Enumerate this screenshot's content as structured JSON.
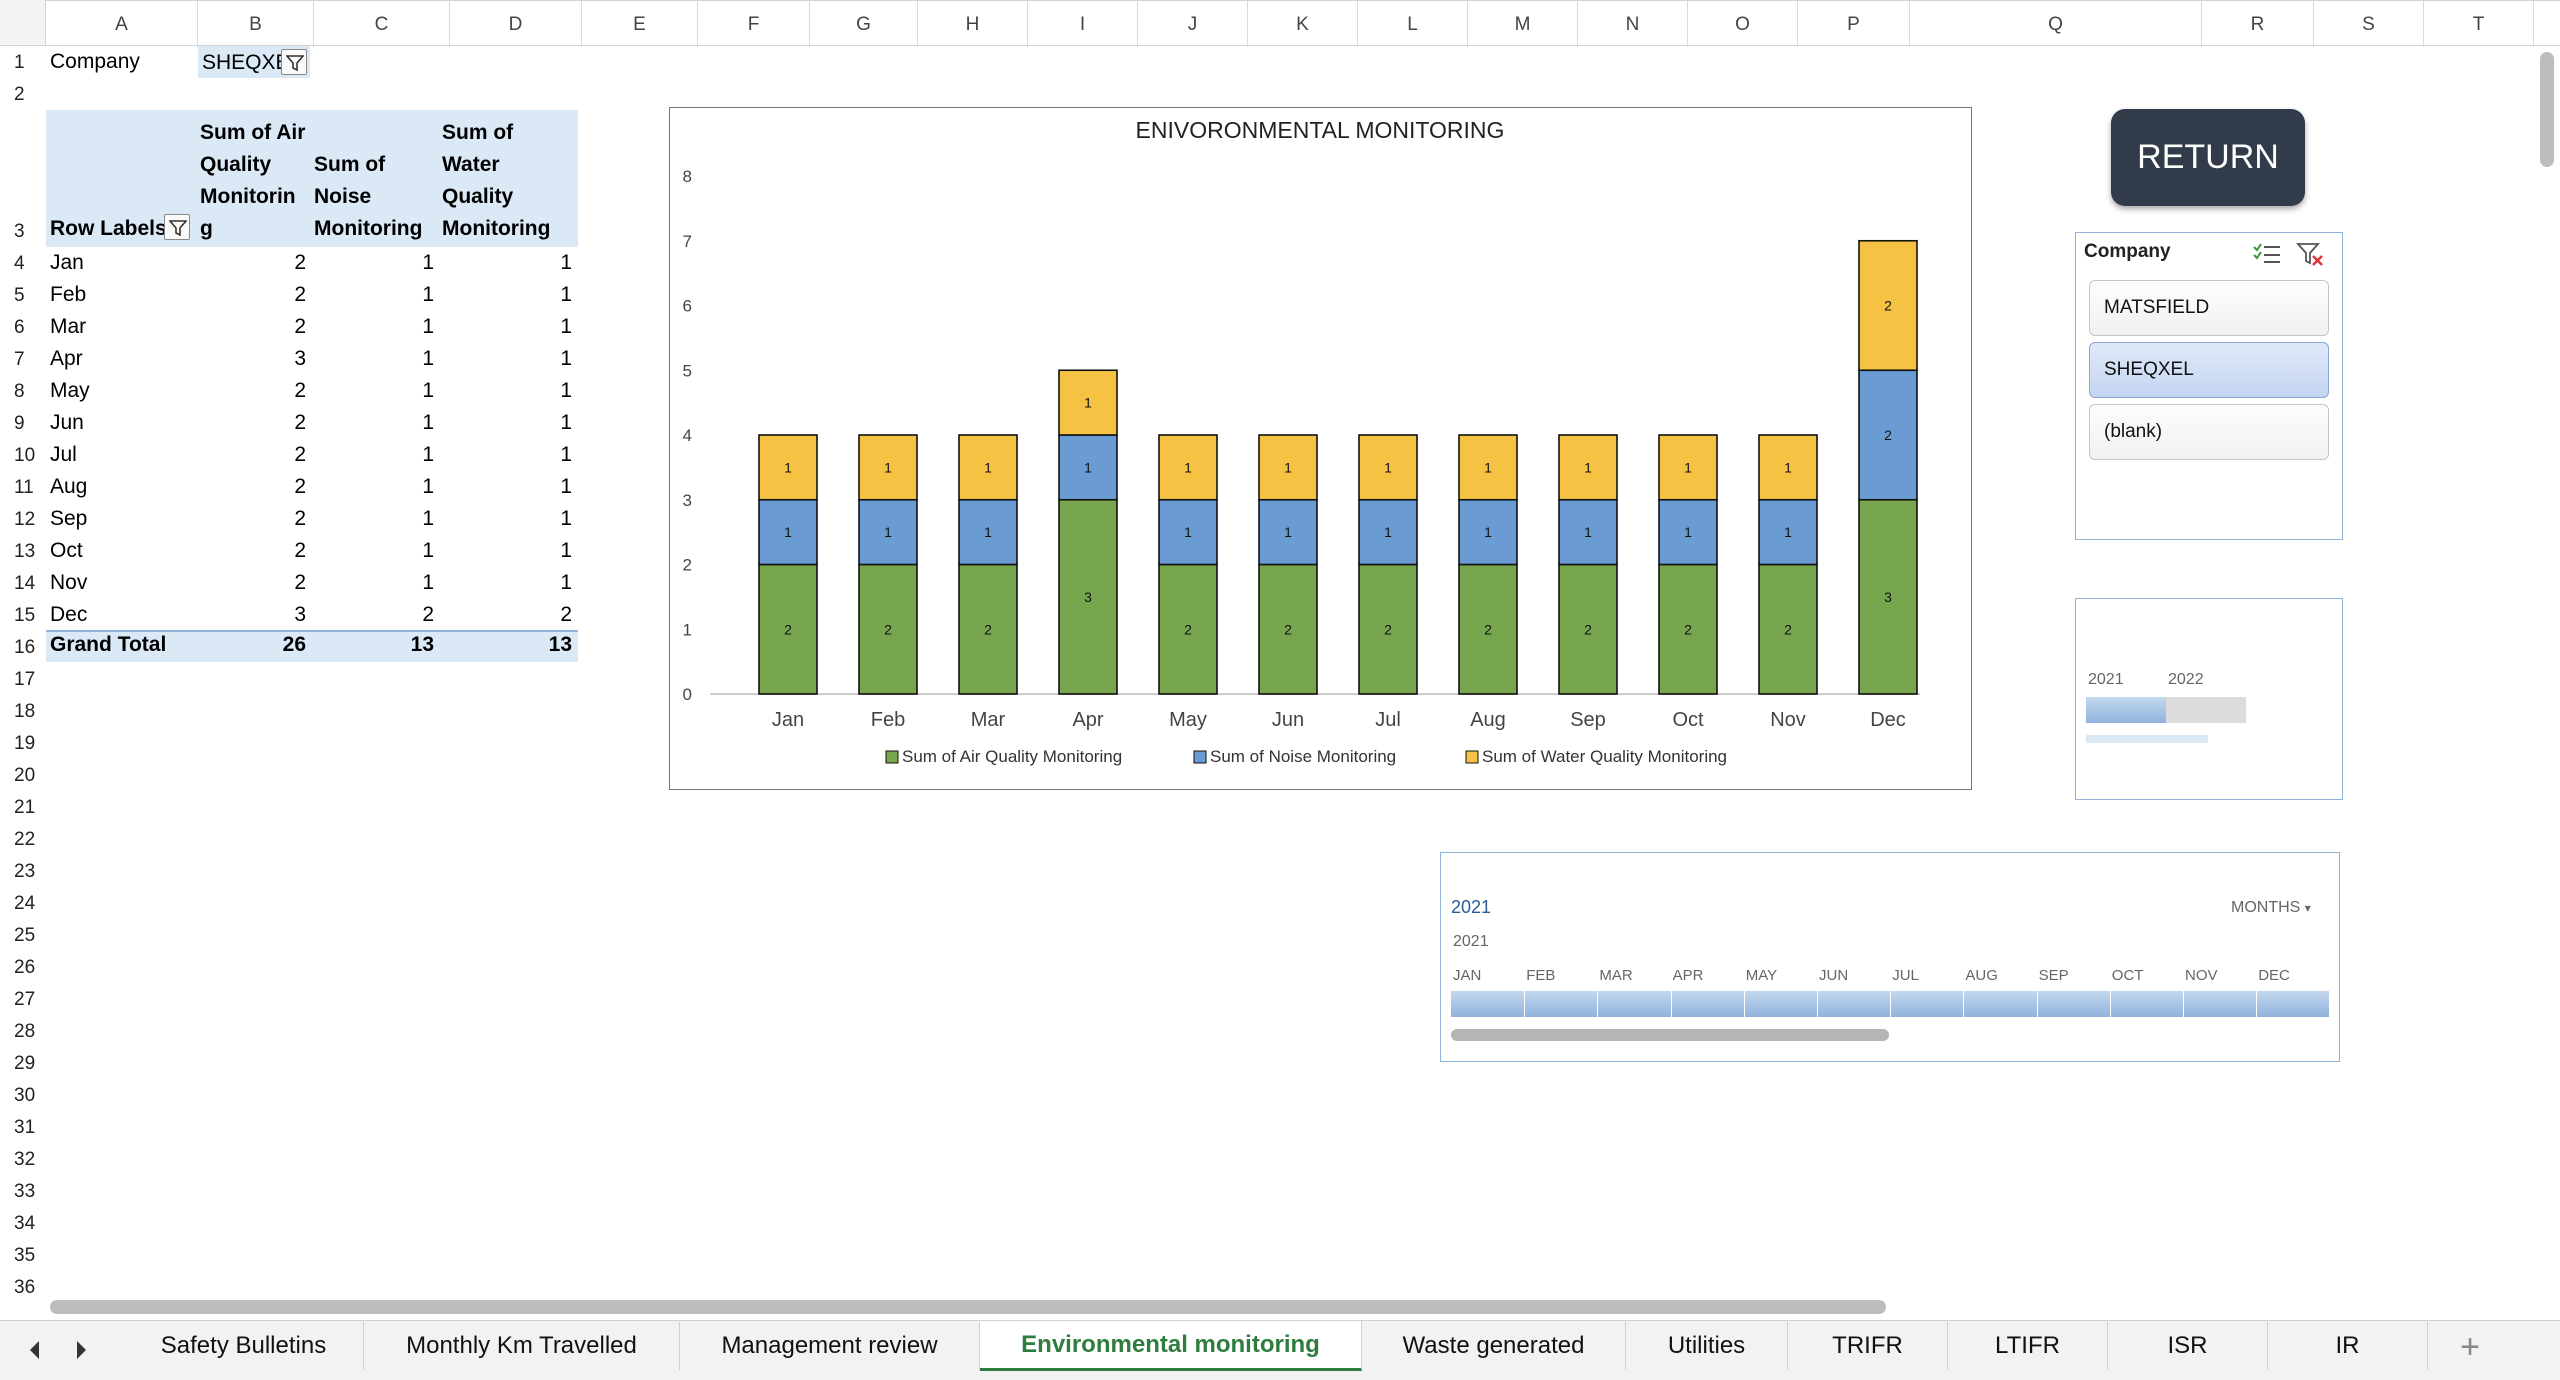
{
  "columns": [
    "A",
    "B",
    "C",
    "D",
    "E",
    "F",
    "G",
    "H",
    "I",
    "J",
    "K",
    "L",
    "M",
    "N",
    "O",
    "P",
    "Q",
    "R",
    "S",
    "T"
  ],
  "rows": [
    "1",
    "2",
    "3",
    "4",
    "5",
    "6",
    "7",
    "8",
    "9",
    "10",
    "11",
    "12",
    "13",
    "14",
    "15",
    "16",
    "17",
    "18",
    "19",
    "20",
    "21",
    "22",
    "23",
    "24",
    "25",
    "26",
    "27",
    "28",
    "29",
    "30",
    "31",
    "32",
    "33",
    "34",
    "35",
    "36"
  ],
  "filter": {
    "label": "Company",
    "value": "SHEQXE"
  },
  "pivot": {
    "row_labels": "Row Labels",
    "header_b": "Sum of Air Quality Monitorin g",
    "header_c": "Sum of Noise Monitoring",
    "header_d": "Sum of Water Quality Monitoring",
    "rows": [
      {
        "label": "Jan",
        "air": "2",
        "noise": "1",
        "water": "1"
      },
      {
        "label": "Feb",
        "air": "2",
        "noise": "1",
        "water": "1"
      },
      {
        "label": "Mar",
        "air": "2",
        "noise": "1",
        "water": "1"
      },
      {
        "label": "Apr",
        "air": "3",
        "noise": "1",
        "water": "1"
      },
      {
        "label": "May",
        "air": "2",
        "noise": "1",
        "water": "1"
      },
      {
        "label": "Jun",
        "air": "2",
        "noise": "1",
        "water": "1"
      },
      {
        "label": "Jul",
        "air": "2",
        "noise": "1",
        "water": "1"
      },
      {
        "label": "Aug",
        "air": "2",
        "noise": "1",
        "water": "1"
      },
      {
        "label": "Sep",
        "air": "2",
        "noise": "1",
        "water": "1"
      },
      {
        "label": "Oct",
        "air": "2",
        "noise": "1",
        "water": "1"
      },
      {
        "label": "Nov",
        "air": "2",
        "noise": "1",
        "water": "1"
      },
      {
        "label": "Dec",
        "air": "3",
        "noise": "2",
        "water": "2"
      }
    ],
    "grand_total": {
      "label": "Grand Total",
      "air": "26",
      "noise": "13",
      "water": "13"
    }
  },
  "chart_data": {
    "type": "bar",
    "stacked": true,
    "title": "ENIVORONMENTAL MONITORING",
    "categories": [
      "Jan",
      "Feb",
      "Mar",
      "Apr",
      "May",
      "Jun",
      "Jul",
      "Aug",
      "Sep",
      "Oct",
      "Nov",
      "Dec"
    ],
    "ylim": [
      0,
      8
    ],
    "yticks": [
      0,
      1,
      2,
      3,
      4,
      5,
      6,
      7,
      8
    ],
    "grid": false,
    "legend": "bottom",
    "series": [
      {
        "name": "Sum of Air Quality Monitoring",
        "color": "#77a64f",
        "values": [
          2,
          2,
          2,
          3,
          2,
          2,
          2,
          2,
          2,
          2,
          2,
          3
        ]
      },
      {
        "name": "Sum of Noise Monitoring",
        "color": "#6a9bd3",
        "values": [
          1,
          1,
          1,
          1,
          1,
          1,
          1,
          1,
          1,
          1,
          1,
          2
        ]
      },
      {
        "name": "Sum of Water Quality Monitoring",
        "color": "#f5c243",
        "values": [
          1,
          1,
          1,
          1,
          1,
          1,
          1,
          1,
          1,
          1,
          1,
          2
        ]
      }
    ]
  },
  "return_button": {
    "label": "RETURN"
  },
  "slicer": {
    "title": "Company",
    "items": [
      {
        "label": "MATSFIELD",
        "selected": false
      },
      {
        "label": "SHEQXEL",
        "selected": true
      },
      {
        "label": "(blank)",
        "selected": false
      }
    ]
  },
  "year_timeline": {
    "year1": "2021",
    "year2": "2022"
  },
  "month_timeline": {
    "title": "2021",
    "level": "MONTHS",
    "year": "2021",
    "months": [
      "JAN",
      "FEB",
      "MAR",
      "APR",
      "MAY",
      "JUN",
      "JUL",
      "AUG",
      "SEP",
      "OCT",
      "NOV",
      "DEC"
    ]
  },
  "tabs": [
    {
      "label": "Safety Bulletins",
      "active": false
    },
    {
      "label": "Monthly Km Travelled",
      "active": false
    },
    {
      "label": "Management review",
      "active": false
    },
    {
      "label": "Environmental monitoring",
      "active": true
    },
    {
      "label": "Waste generated",
      "active": false
    },
    {
      "label": "Utilities",
      "active": false
    },
    {
      "label": "TRIFR",
      "active": false
    },
    {
      "label": "LTIFR",
      "active": false
    },
    {
      "label": "ISR",
      "active": false
    },
    {
      "label": "IR",
      "active": false
    }
  ],
  "colors": {
    "accent_tab": "#2e7d3e",
    "pivot_header": "#dbe9f7",
    "button": "#323b4a"
  }
}
